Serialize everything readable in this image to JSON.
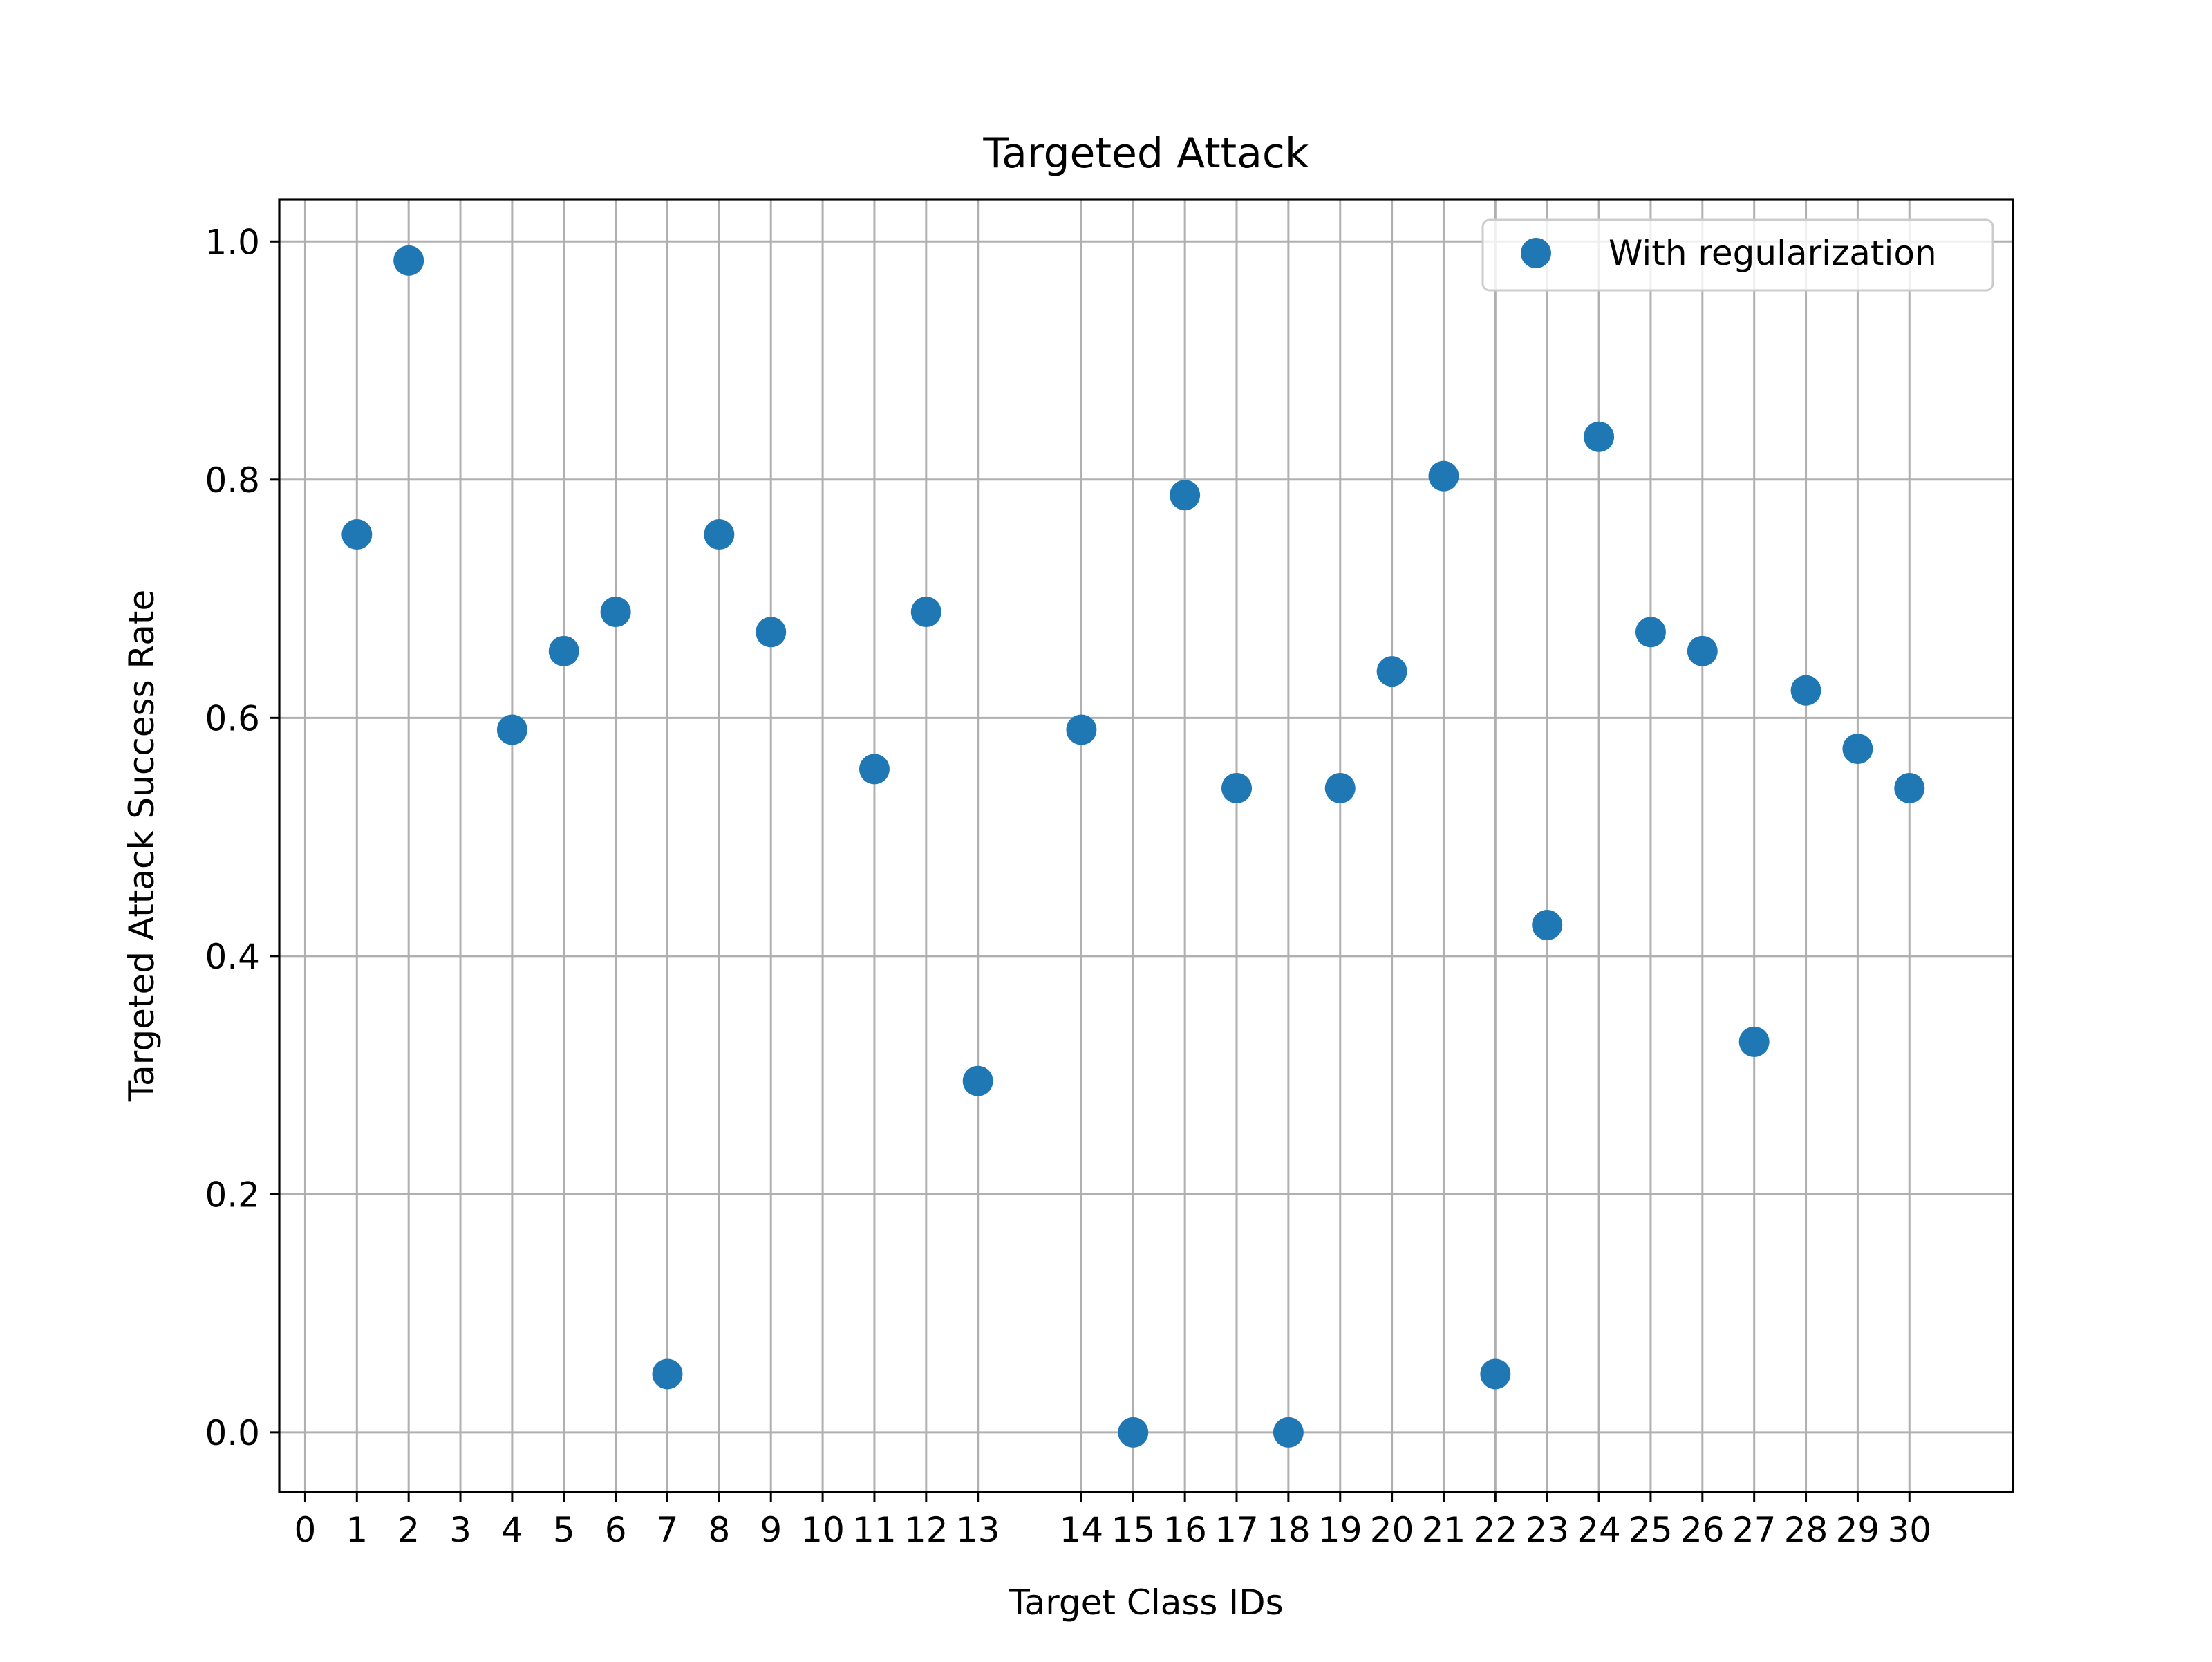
{
  "chart_data": {
    "type": "scatter",
    "title": "Targeted Attack",
    "xlabel": "Target Class IDs",
    "ylabel": "Targeted Attack Success Rate",
    "xlim": [
      -0.5,
      33
    ],
    "ylim": [
      -0.05,
      1.035
    ],
    "grid": true,
    "legend_position": "top-right",
    "x_ticks": [
      {
        "x": 0,
        "label": "0"
      },
      {
        "x": 1,
        "label": "1"
      },
      {
        "x": 2,
        "label": "2"
      },
      {
        "x": 3,
        "label": "3"
      },
      {
        "x": 4,
        "label": "4"
      },
      {
        "x": 5,
        "label": "5"
      },
      {
        "x": 6,
        "label": "6"
      },
      {
        "x": 7,
        "label": "7"
      },
      {
        "x": 8,
        "label": "8"
      },
      {
        "x": 9,
        "label": "9"
      },
      {
        "x": 10,
        "label": "10"
      },
      {
        "x": 11,
        "label": "11"
      },
      {
        "x": 12,
        "label": "12"
      },
      {
        "x": 13,
        "label": "13"
      },
      {
        "x": 15,
        "label": "14"
      },
      {
        "x": 16,
        "label": "15"
      },
      {
        "x": 17,
        "label": "16"
      },
      {
        "x": 18,
        "label": "17"
      },
      {
        "x": 19,
        "label": "18"
      },
      {
        "x": 20,
        "label": "19"
      },
      {
        "x": 21,
        "label": "20"
      },
      {
        "x": 22,
        "label": "21"
      },
      {
        "x": 23,
        "label": "22"
      },
      {
        "x": 24,
        "label": "23"
      },
      {
        "x": 25,
        "label": "24"
      },
      {
        "x": 26,
        "label": "25"
      },
      {
        "x": 27,
        "label": "26"
      },
      {
        "x": 28,
        "label": "27"
      },
      {
        "x": 29,
        "label": "28"
      },
      {
        "x": 30,
        "label": "29"
      },
      {
        "x": 31,
        "label": "30"
      }
    ],
    "y_ticks": [
      {
        "y": 0.0,
        "label": "0.0"
      },
      {
        "y": 0.2,
        "label": "0.2"
      },
      {
        "y": 0.4,
        "label": "0.4"
      },
      {
        "y": 0.6,
        "label": "0.6"
      },
      {
        "y": 0.8,
        "label": "0.8"
      },
      {
        "y": 1.0,
        "label": "1.0"
      }
    ],
    "series": [
      {
        "name": "With regularization",
        "color": "#1f77b4",
        "marker": "circle",
        "points": [
          {
            "x": 1,
            "y": 0.754
          },
          {
            "x": 2,
            "y": 0.984
          },
          {
            "x": 4,
            "y": 0.59
          },
          {
            "x": 5,
            "y": 0.656
          },
          {
            "x": 6,
            "y": 0.689
          },
          {
            "x": 7,
            "y": 0.049
          },
          {
            "x": 8,
            "y": 0.754
          },
          {
            "x": 9,
            "y": 0.672
          },
          {
            "x": 11,
            "y": 0.557
          },
          {
            "x": 12,
            "y": 0.689
          },
          {
            "x": 13,
            "y": 0.295
          },
          {
            "x": 15,
            "y": 0.59
          },
          {
            "x": 16,
            "y": 0.0
          },
          {
            "x": 17,
            "y": 0.787
          },
          {
            "x": 18,
            "y": 0.541
          },
          {
            "x": 19,
            "y": 0.0
          },
          {
            "x": 20,
            "y": 0.541
          },
          {
            "x": 21,
            "y": 0.639
          },
          {
            "x": 22,
            "y": 0.803
          },
          {
            "x": 23,
            "y": 0.049
          },
          {
            "x": 24,
            "y": 0.426
          },
          {
            "x": 25,
            "y": 0.836
          },
          {
            "x": 26,
            "y": 0.672
          },
          {
            "x": 27,
            "y": 0.656
          },
          {
            "x": 28,
            "y": 0.328
          },
          {
            "x": 29,
            "y": 0.623
          },
          {
            "x": 30,
            "y": 0.574
          },
          {
            "x": 31,
            "y": 0.541
          }
        ]
      }
    ]
  }
}
